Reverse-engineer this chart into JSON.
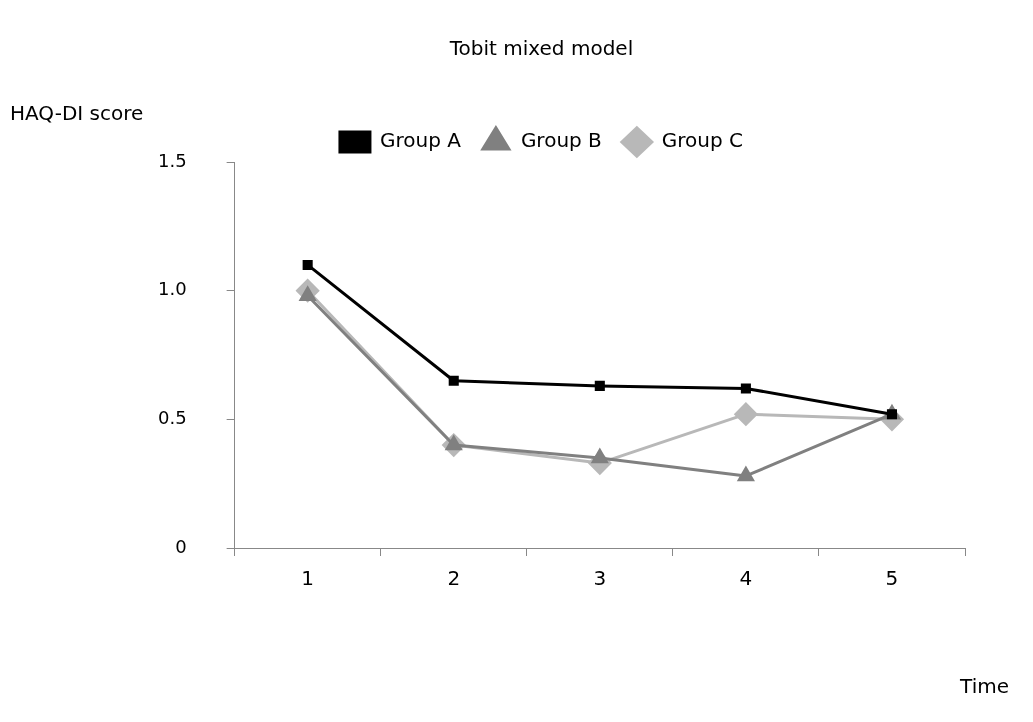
{
  "chart_data": {
    "type": "line",
    "title": "Tobit mixed model",
    "ylabel": "HAQ-DI score",
    "xlabel": "Time",
    "categories": [
      "1",
      "2",
      "3",
      "4",
      "5"
    ],
    "series": [
      {
        "name": "Group A",
        "color": "#000000",
        "marker": "square",
        "values": [
          1.1,
          0.65,
          0.63,
          0.62,
          0.52
        ]
      },
      {
        "name": "Group B",
        "color": "#808080",
        "marker": "triangle",
        "values": [
          0.98,
          0.4,
          0.35,
          0.28,
          0.52
        ]
      },
      {
        "name": "Group C",
        "color": "#b8b8b8",
        "marker": "diamond",
        "values": [
          1.0,
          0.4,
          0.33,
          0.52,
          0.5
        ]
      }
    ],
    "ylim": [
      0,
      1.5
    ],
    "yticks": [
      {
        "value": 0,
        "label": "0"
      },
      {
        "value": 0.5,
        "label": "0.5"
      },
      {
        "value": 1,
        "label": "1.0"
      },
      {
        "value": 1.5,
        "label": "1.5"
      }
    ],
    "grid": false,
    "legend": "top",
    "line_style": "solid"
  }
}
